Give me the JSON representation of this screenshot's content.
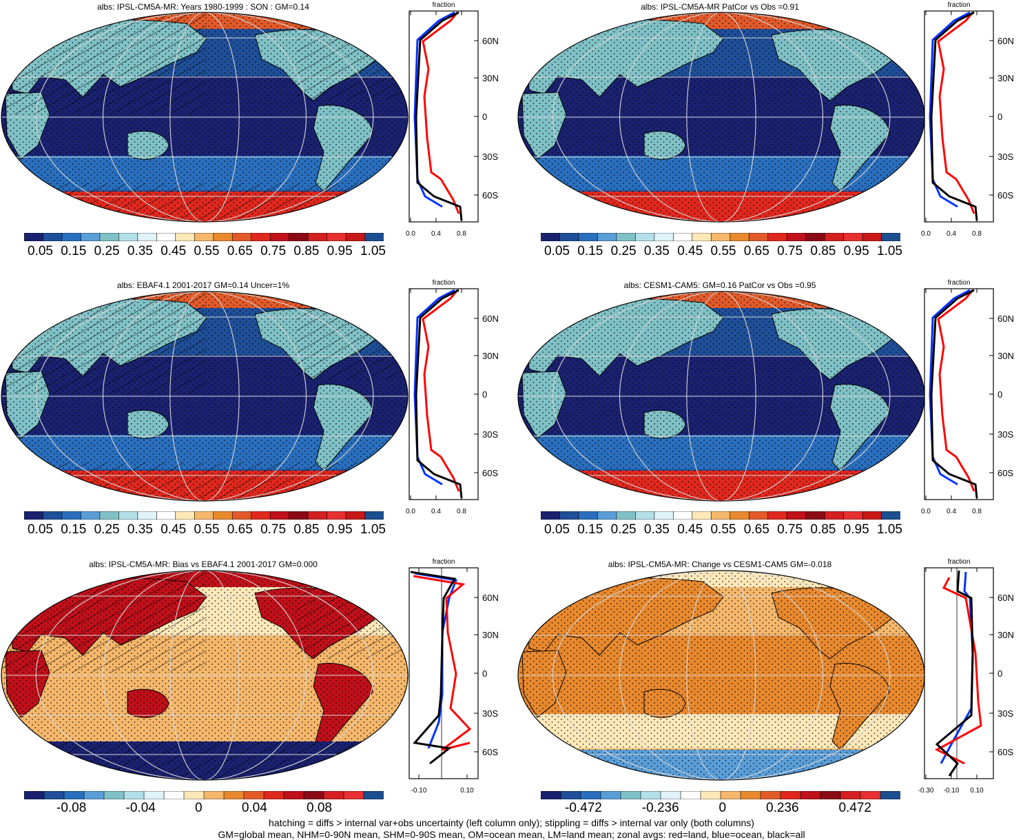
{
  "panels": [
    {
      "title": "albs: IPSL-CM5A-MR: Years 1980-1999 : SON : GM=0.14",
      "colorbar": [
        "0.05",
        "0.15",
        "0.25",
        "0.35",
        "0.45",
        "0.55",
        "0.65",
        "0.75",
        "0.85",
        "0.95",
        "1.05"
      ],
      "zonal": {
        "label": "fraction",
        "lat_ticks": [
          "60N",
          "30N",
          "0",
          "30S",
          "60S"
        ],
        "x_ticks": [
          "0.0",
          "0.4",
          "0.8"
        ]
      }
    },
    {
      "title": "albs: IPSL-CM5A-MR PatCor vs Obs =0.91",
      "colorbar": [
        "0.05",
        "0.15",
        "0.25",
        "0.35",
        "0.45",
        "0.55",
        "0.65",
        "0.75",
        "0.85",
        "0.95",
        "1.05"
      ],
      "zonal": {
        "label": "fraction",
        "lat_ticks": [
          "60N",
          "30N",
          "0",
          "30S",
          "60S"
        ],
        "x_ticks": [
          "0.0",
          "0.4",
          "0.8"
        ]
      }
    },
    {
      "title": "albs: EBAF4.1 2001-2017 GM=0.14 Uncer=1%",
      "colorbar": [
        "0.05",
        "0.15",
        "0.25",
        "0.35",
        "0.45",
        "0.55",
        "0.65",
        "0.75",
        "0.85",
        "0.95",
        "1.05"
      ],
      "zonal": {
        "label": "fraction",
        "lat_ticks": [
          "60N",
          "30N",
          "0",
          "30S",
          "60S"
        ],
        "x_ticks": [
          "0.0",
          "0.4",
          "0.8"
        ]
      }
    },
    {
      "title": "albs: CESM1-CAM5: GM=0.16 PatCor vs Obs =0.95",
      "colorbar": [
        "0.05",
        "0.15",
        "0.25",
        "0.35",
        "0.45",
        "0.55",
        "0.65",
        "0.75",
        "0.85",
        "0.95",
        "1.05"
      ],
      "zonal": {
        "label": "fraction",
        "lat_ticks": [
          "60N",
          "30N",
          "0",
          "30S",
          "60S"
        ],
        "x_ticks": [
          "0.0",
          "0.4",
          "0.8"
        ]
      }
    },
    {
      "title": "albs: IPSL-CM5A-MR: Bias vs EBAF4.1 2001-2017  GM=0.000",
      "colorbar": [
        "-0.08",
        "-0.04",
        "0",
        "0.04",
        "0.08"
      ],
      "zonal": {
        "label": "fraction",
        "lat_ticks": [
          "60N",
          "30N",
          "0",
          "30S",
          "60S"
        ],
        "x_ticks": [
          "-0.10",
          "0.10"
        ]
      }
    },
    {
      "title": "albs: IPSL-CM5A-MR: Change vs CESM1-CAM5 GM=-0.018",
      "colorbar": [
        "-0.472",
        "-0.236",
        "0",
        "0.236",
        "0.472"
      ],
      "zonal": {
        "label": "fraction",
        "lat_ticks": [
          "60N",
          "30N",
          "0",
          "30S",
          "60S"
        ],
        "x_ticks": [
          "-0.30",
          "-0.10",
          "0.10"
        ]
      }
    }
  ],
  "colors": {
    "abs_scale": [
      "#1a2270",
      "#1f4f99",
      "#2a6fbe",
      "#5a9ed8",
      "#7fc1c6",
      "#b3e0e8",
      "#e0f3f8",
      "#ffffff",
      "#ffe8b8",
      "#f5b76b",
      "#e8892e",
      "#e25a2a",
      "#e0281e",
      "#c0101a",
      "#8a0a16",
      "#d42020",
      "#e83030",
      "#c81818",
      "#1c4f90"
    ],
    "diff_scale": [
      "#1a2270",
      "#1f4f99",
      "#2a6fbe",
      "#5a9ed8",
      "#7fc1c6",
      "#b3e0e8",
      "#e0f3f8",
      "#ffffff",
      "#ffe8b8",
      "#f5b76b",
      "#e8892e",
      "#e25a2a",
      "#e0281e",
      "#c0101a",
      "#8a0a16",
      "#d42020",
      "#e83030",
      "#1c4f90"
    ],
    "land_line": "#ff0000",
    "ocean_line": "#0033ff",
    "all_line": "#000000"
  },
  "footnote": {
    "line1": "hatching = diffs > internal var+obs uncertainty (left column only); stippling = diffs > internal var only (both columns)",
    "line2": "GM=global mean, NHM=0-90N mean, SHM=0-90S mean, OM=ocean mean, LM=land mean; zonal avgs: red=land, blue=ocean, black=all"
  }
}
